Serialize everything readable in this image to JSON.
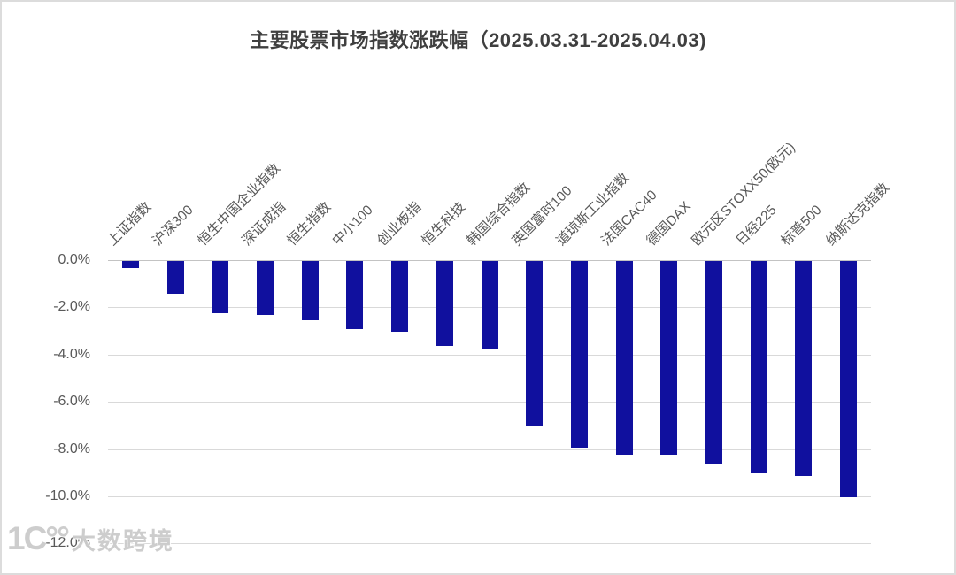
{
  "title": "主要股票市场指数涨跌幅（2025.03.31-2025.04.03)",
  "watermark": {
    "logo": "1C°°",
    "text": "大数跨境"
  },
  "colors": {
    "bar": "#10109e",
    "gridline": "#d9d9d9",
    "zero_line": "#c3c3c3",
    "axis_text": "#595959",
    "title_text": "#3f3f3f",
    "watermark_text": "#cbcbcb"
  },
  "chart_data": {
    "type": "bar",
    "title": "主要股票市场指数涨跌幅（2025.03.31-2025.04.03)",
    "xlabel": "",
    "ylabel": "",
    "ylim": [
      -12,
      0
    ],
    "grid": true,
    "legend": "none",
    "bar_color": "#10109e",
    "categories": [
      "上证指数",
      "沪深300",
      "恒生中国企业指数",
      "深证成指",
      "恒生指数",
      "中小100",
      "创业板指",
      "恒生科技",
      "韩国综合指数",
      "英国富时100",
      "道琼斯工业指数",
      "法国CAC40",
      "德国DAX",
      "欧元区STOXX50(欧元)",
      "日经225",
      "标普500",
      "纳斯达克指数"
    ],
    "values": [
      -0.3,
      -1.4,
      -2.2,
      -2.3,
      -2.5,
      -2.9,
      -3.0,
      -3.6,
      -3.7,
      -7.0,
      -7.9,
      -8.2,
      -8.2,
      -8.6,
      -9.0,
      -9.1,
      -10.0
    ],
    "value_unit": "%",
    "yticks_labels": [
      "0.0%",
      "-2.0%",
      "-4.0%",
      "-6.0%",
      "-8.0%",
      "-10.0%",
      "-12.0%"
    ],
    "yticks_values": [
      0,
      -2,
      -4,
      -6,
      -8,
      -10,
      -12
    ]
  }
}
